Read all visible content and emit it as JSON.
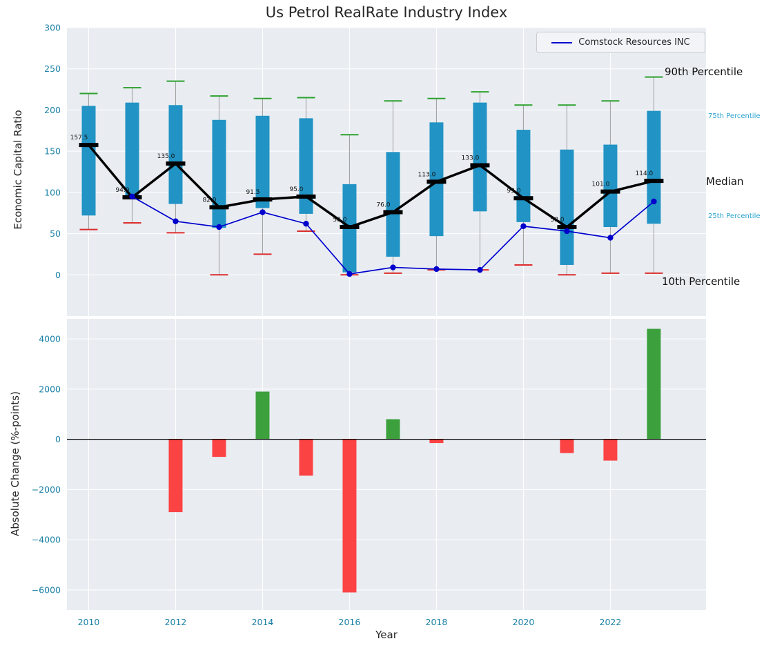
{
  "title": "Us Petrol RealRate Industry Index",
  "legend": {
    "label": "Comstock Resources INC"
  },
  "annotations": {
    "p90": "90th Percentile",
    "p75": "75th Percentile",
    "median": "Median",
    "p25": "25th Percentile",
    "p10": "10th Percentile"
  },
  "colors": {
    "panel_bg": "#e9edf2",
    "grid": "#ffffff",
    "box": "#2193c4",
    "cap_top": "#2ca02c",
    "cap_bottom": "#dd2c2c",
    "whisker": "#a3a3a3",
    "median": "#000000",
    "line": "#0000cd",
    "bar_pos": "#3ca03c",
    "bar_neg": "#fb4343",
    "tick": "#1a80a6",
    "annotation_teal": "#2aa3d1",
    "annotation_dark": "#0f0f0f"
  },
  "chart_data": [
    {
      "type": "boxplot+line",
      "title": "Us Petrol RealRate Industry Index",
      "ylabel": "Economic Capital Ratio",
      "xlabel": "",
      "ylim": [
        -50,
        300
      ],
      "xlim": [
        2009.5,
        2024.2
      ],
      "yticks": [
        0,
        50,
        100,
        150,
        200,
        250,
        300
      ],
      "xticks": [
        2010,
        2012,
        2014,
        2016,
        2018,
        2020,
        2022
      ],
      "grid": true,
      "legend_entries": [
        "Comstock Resources INC"
      ],
      "years": [
        2010,
        2011,
        2012,
        2013,
        2014,
        2015,
        2016,
        2017,
        2018,
        2019,
        2020,
        2021,
        2022,
        2023
      ],
      "series": {
        "p90": [
          220,
          227,
          235,
          217,
          214,
          215,
          170,
          211,
          214,
          222,
          206,
          206,
          211,
          240
        ],
        "p75": [
          205,
          209,
          206,
          188,
          193,
          190,
          110,
          149,
          185,
          209,
          176,
          152,
          158,
          199
        ],
        "median": [
          157.5,
          94.0,
          135.0,
          82.0,
          91.5,
          95.0,
          58.0,
          76.0,
          113.0,
          133.0,
          93.0,
          58.0,
          101.0,
          114.0
        ],
        "p25": [
          72,
          93,
          86,
          57,
          81,
          74,
          3,
          22,
          47,
          77,
          64,
          12,
          58,
          62
        ],
        "p10": [
          55,
          63,
          51,
          0,
          25,
          53,
          0,
          2,
          6,
          6,
          12,
          0,
          2,
          2
        ],
        "comstock": [
          null,
          95,
          65,
          58,
          76,
          62,
          1,
          9,
          7,
          6,
          59,
          53,
          45,
          89
        ]
      }
    },
    {
      "type": "bar",
      "ylabel": "Absolute Change (%-points)",
      "xlabel": "Year",
      "ylim": [
        -6800,
        4800
      ],
      "yticks": [
        -6000,
        -4000,
        -2000,
        0,
        2000,
        4000
      ],
      "categories": [
        2010,
        2011,
        2012,
        2013,
        2014,
        2015,
        2016,
        2017,
        2018,
        2019,
        2020,
        2021,
        2022,
        2023
      ],
      "values": [
        0,
        0,
        -2900,
        -700,
        1900,
        -1450,
        -6100,
        800,
        -150,
        0,
        0,
        -550,
        -850,
        4400
      ]
    }
  ]
}
